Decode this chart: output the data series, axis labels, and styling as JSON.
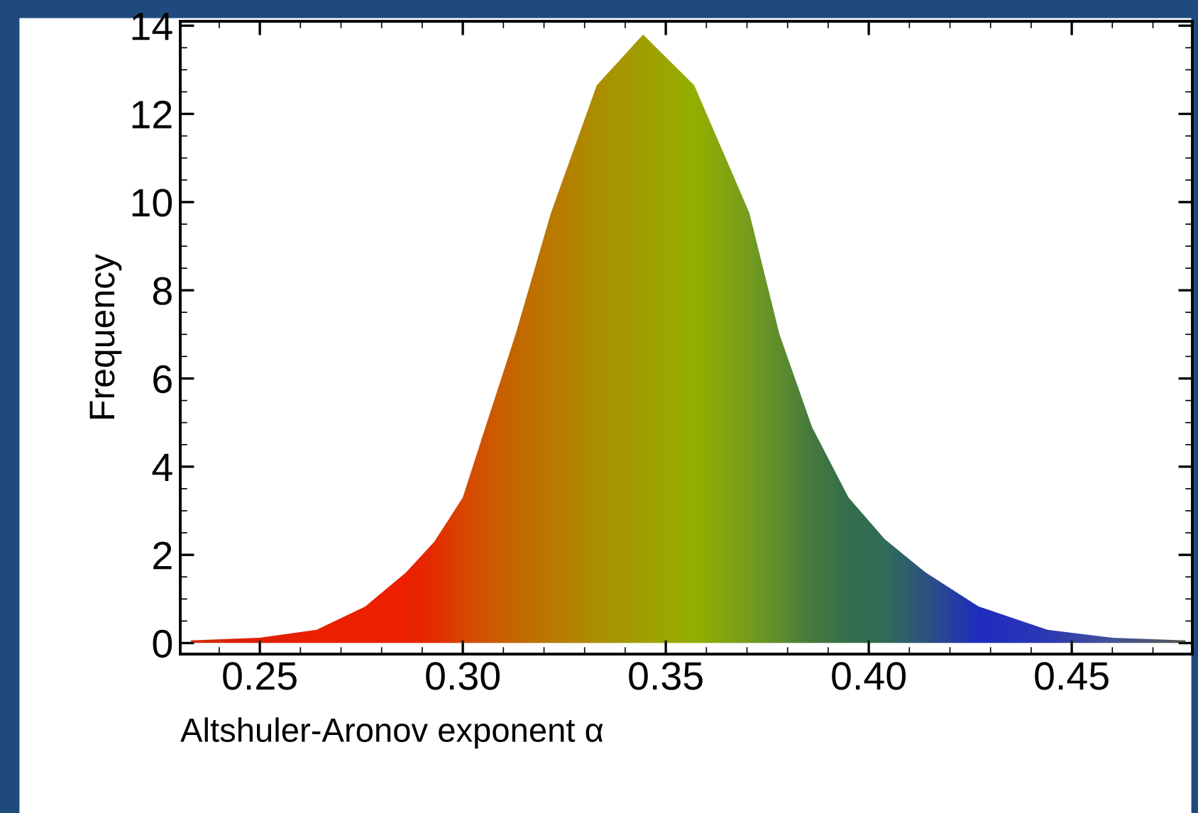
{
  "chart_data": {
    "type": "area",
    "xlabel": "Altshuler-Aronov exponent α",
    "ylabel": "Frequency",
    "x": [
      0.233,
      0.25,
      0.264,
      0.276,
      0.286,
      0.293,
      0.3,
      0.3056,
      0.313,
      0.3217,
      0.333,
      0.3444,
      0.357,
      0.3706,
      0.378,
      0.386,
      0.395,
      0.404,
      0.414,
      0.427,
      0.444,
      0.46,
      0.478
    ],
    "series": [
      {
        "values": [
          0.06,
          0.12,
          0.3,
          0.83,
          1.6,
          2.3,
          3.3,
          4.9,
          7.0,
          9.75,
          12.65,
          13.8,
          12.65,
          9.75,
          7.0,
          4.9,
          3.3,
          2.35,
          1.6,
          0.83,
          0.3,
          0.12,
          0.06
        ],
        "colors": [
          "#e01010",
          "#f00000",
          "#ff0000",
          "#ff0000",
          "#ff0000",
          "#f51000",
          "#e83000",
          "#dc4400",
          "#cc5a00",
          "#c07000",
          "#b08a00",
          "#a0a000",
          "#90b400",
          "#6a9c28",
          "#4e8a3a",
          "#306f50",
          "#1a6260",
          "#146070",
          "#1040a0",
          "#0010f0",
          "#1020e0",
          "#3040c0",
          "#404060"
        ]
      }
    ],
    "xlim": [
      0.2304,
      0.4797
    ],
    "ylim": [
      -0.25,
      14.1
    ],
    "xticks": [
      {
        "value": 0.25,
        "label": "0.25"
      },
      {
        "value": 0.3,
        "label": "0.30"
      },
      {
        "value": 0.35,
        "label": "0.35"
      },
      {
        "value": 0.4,
        "label": "0.40"
      },
      {
        "value": 0.45,
        "label": "0.45"
      }
    ],
    "yticks": [
      0,
      2,
      4,
      6,
      8,
      10,
      12,
      14
    ],
    "grid": false,
    "legend": false
  }
}
